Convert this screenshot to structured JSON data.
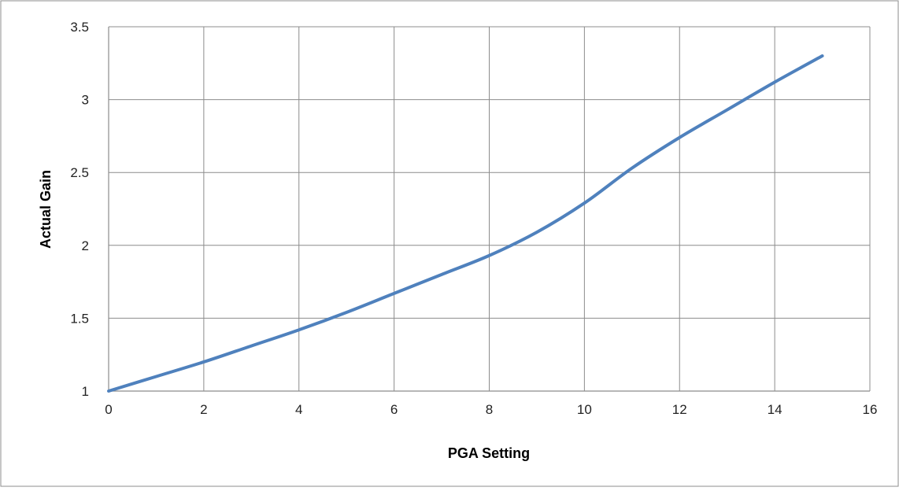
{
  "chart_data": {
    "type": "line",
    "title": "",
    "xlabel": "PGA Setting",
    "ylabel": "Actual Gain",
    "xlim": [
      0,
      16
    ],
    "ylim": [
      1,
      3.5
    ],
    "x_ticks": [
      0,
      2,
      4,
      6,
      8,
      10,
      12,
      14,
      16
    ],
    "y_ticks": [
      1,
      1.5,
      2,
      2.5,
      3,
      3.5
    ],
    "x_tick_labels": [
      "0",
      "2",
      "4",
      "6",
      "8",
      "10",
      "12",
      "14",
      "16"
    ],
    "y_tick_labels": [
      "1",
      "1.5",
      "2",
      "2.5",
      "3",
      "3.5"
    ],
    "grid": true,
    "legend": "none",
    "series": [
      {
        "color": "#4f81bd",
        "x": [
          0,
          1,
          2,
          3,
          4,
          5,
          6,
          7,
          8,
          9,
          10,
          11,
          12,
          13,
          14,
          15
        ],
        "values": [
          1.0,
          1.1,
          1.2,
          1.31,
          1.42,
          1.54,
          1.67,
          1.8,
          1.93,
          2.09,
          2.29,
          2.53,
          2.74,
          2.93,
          3.12,
          3.3
        ]
      }
    ]
  }
}
